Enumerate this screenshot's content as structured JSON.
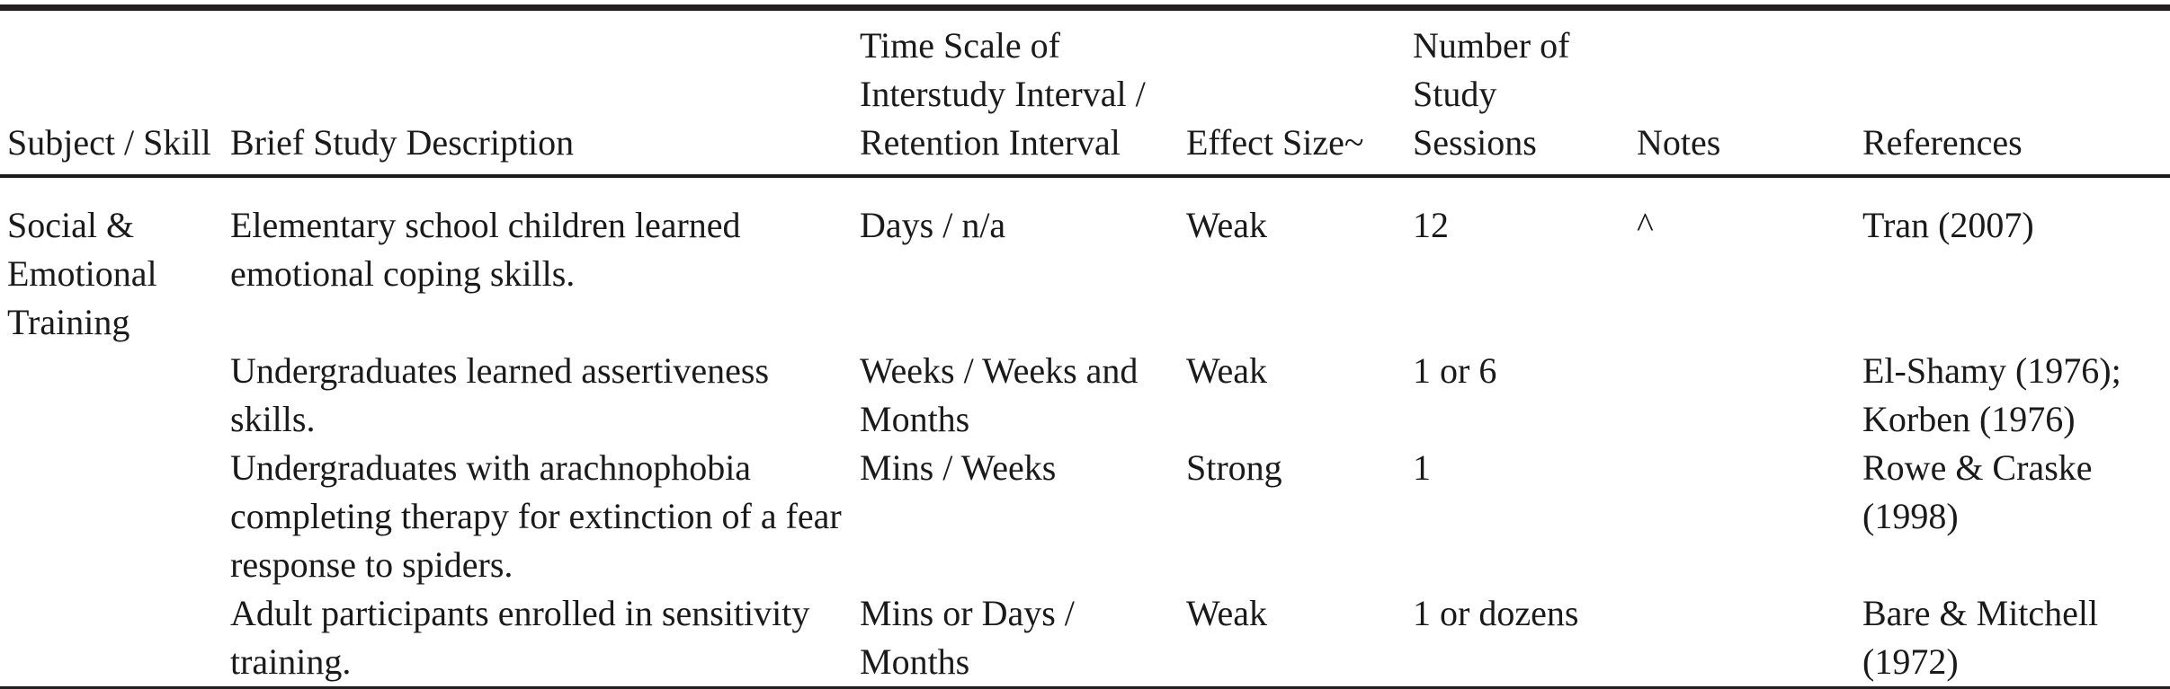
{
  "table": {
    "columns": [
      {
        "label": "Subject / Skill"
      },
      {
        "label": "Brief Study Description"
      },
      {
        "label": "Time Scale of\nInterstudy Interval /\nRetention Interval"
      },
      {
        "label": "Effect Size~"
      },
      {
        "label": "Number of\nStudy\nSessions"
      },
      {
        "label": "Notes"
      },
      {
        "label": "References"
      }
    ],
    "rows": [
      {
        "subject_skill": "Social &\nEmotional\nTraining",
        "description": "Elementary school children learned\nemotional coping skills.",
        "time_scale": "Days / n/a",
        "effect_size": "Weak",
        "num_sessions": "12",
        "notes": "^",
        "references": "Tran (2007)"
      },
      {
        "subject_skill": "",
        "description": "Undergraduates learned assertiveness\nskills.",
        "time_scale": "Weeks / Weeks and\nMonths",
        "effect_size": "Weak",
        "num_sessions": "1 or 6",
        "notes": "",
        "references": "El-Shamy (1976);\nKorben (1976)"
      },
      {
        "subject_skill": "",
        "description": "Undergraduates with arachnophobia\ncompleting therapy for extinction of a fear\nresponse to spiders.",
        "time_scale": "Mins / Weeks",
        "effect_size": "Strong",
        "num_sessions": "1",
        "notes": "",
        "references": "Rowe & Craske\n(1998)"
      },
      {
        "subject_skill": "",
        "description": "Adult participants enrolled in sensitivity\ntraining.",
        "time_scale": "Mins or Days /\nMonths",
        "effect_size": "Weak",
        "num_sessions": "1 or dozens",
        "notes": "",
        "references": "Bare & Mitchell\n(1972)"
      }
    ]
  },
  "colors": {
    "text": "#1a1a1a",
    "rule": "#211f1f",
    "background": "#ffffff"
  }
}
